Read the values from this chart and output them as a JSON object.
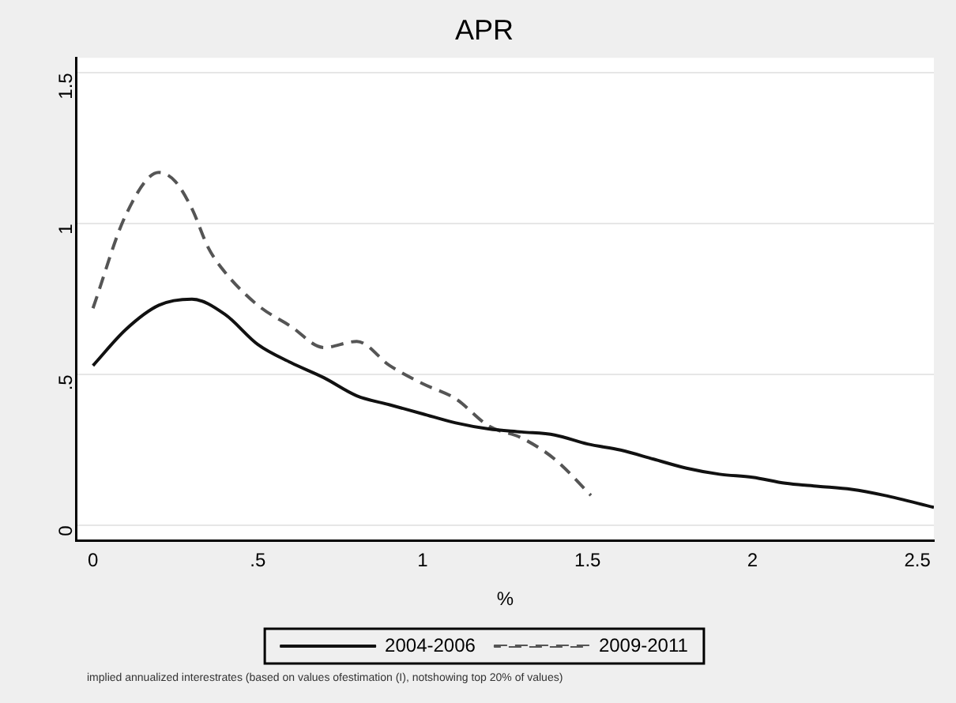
{
  "chart_data": {
    "type": "line",
    "title": "APR",
    "xlabel": "%",
    "xlim": [
      -0.05,
      2.55
    ],
    "xticks": [
      0,
      {
        "value": 0.5,
        "label": ".5"
      },
      1,
      1.5,
      2,
      2.5
    ],
    "ylim": [
      -0.05,
      1.55
    ],
    "yticks": [
      0,
      {
        "value": 0.5,
        "label": ".5"
      },
      1,
      1.5
    ],
    "grid": "y",
    "legend": "bottom",
    "marker": "none",
    "annotations": [
      "implied annualized interestrates (based on values ofestimation (I), notshowing top 20% of values)"
    ],
    "series": [
      {
        "name": "2004-2006",
        "color": "#111111",
        "line_style": "solid",
        "x": [
          0,
          0.1,
          0.2,
          0.3,
          0.4,
          0.5,
          0.6,
          0.7,
          0.8,
          0.9,
          1.0,
          1.1,
          1.2,
          1.3,
          1.4,
          1.5,
          1.6,
          1.7,
          1.8,
          1.9,
          2.0,
          2.1,
          2.2,
          2.3,
          2.4,
          2.55
        ],
        "values": [
          0.53,
          0.65,
          0.73,
          0.75,
          0.7,
          0.6,
          0.54,
          0.49,
          0.43,
          0.4,
          0.37,
          0.34,
          0.32,
          0.31,
          0.3,
          0.27,
          0.25,
          0.22,
          0.19,
          0.17,
          0.16,
          0.14,
          0.13,
          0.12,
          0.1,
          0.06
        ]
      },
      {
        "name": "2009-2011",
        "color": "#555555",
        "line_style": "dashed",
        "x": [
          0,
          0.1,
          0.2,
          0.25,
          0.3,
          0.35,
          0.4,
          0.5,
          0.6,
          0.7,
          0.8,
          0.9,
          1.0,
          1.1,
          1.2,
          1.3,
          1.4,
          1.51
        ],
        "values": [
          0.72,
          1.03,
          1.17,
          1.14,
          1.05,
          0.92,
          0.84,
          0.73,
          0.66,
          0.59,
          0.61,
          0.53,
          0.47,
          0.42,
          0.33,
          0.29,
          0.22,
          0.1
        ]
      }
    ]
  }
}
